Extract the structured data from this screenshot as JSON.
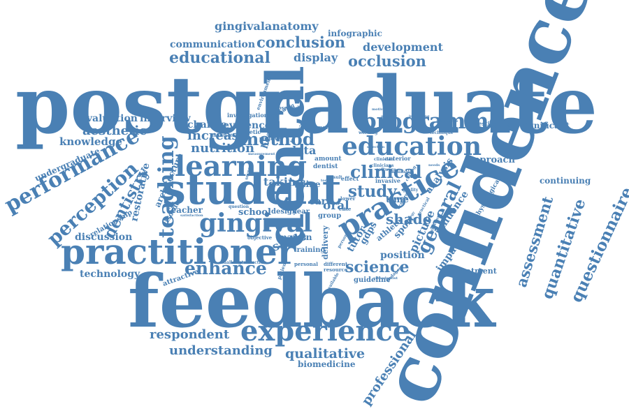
{
  "colors": {
    "word": "#4a80b4",
    "background": "#ffffff"
  },
  "words": [
    {
      "text": "postgraduate"
    },
    {
      "text": "confidence"
    },
    {
      "text": "feedback"
    },
    {
      "text": "dental"
    },
    {
      "text": "student"
    },
    {
      "text": "practitioner"
    },
    {
      "text": "practice"
    },
    {
      "text": "education"
    },
    {
      "text": "learning"
    },
    {
      "text": "experience"
    },
    {
      "text": "gingival"
    },
    {
      "text": "programme"
    },
    {
      "text": "teaching"
    },
    {
      "text": "performance"
    },
    {
      "text": "perception"
    },
    {
      "text": "dentistry"
    },
    {
      "text": "general"
    },
    {
      "text": "clinical"
    },
    {
      "text": "professional"
    },
    {
      "text": "questionnaire"
    },
    {
      "text": "quantitative"
    },
    {
      "text": "assessment"
    },
    {
      "text": "qualitative"
    },
    {
      "text": "enhance"
    },
    {
      "text": "method"
    },
    {
      "text": "study"
    },
    {
      "text": "science"
    },
    {
      "text": "respondent"
    },
    {
      "text": "understanding"
    },
    {
      "text": "educational"
    },
    {
      "text": "conclusion"
    },
    {
      "text": "occlusion"
    },
    {
      "text": "development"
    },
    {
      "text": "gingivalanatomy"
    },
    {
      "text": "communication"
    },
    {
      "text": "infographic"
    },
    {
      "text": "display"
    },
    {
      "text": "nutrition"
    },
    {
      "text": "increase"
    },
    {
      "text": "evidence"
    },
    {
      "text": "change"
    },
    {
      "text": "aesthetic"
    },
    {
      "text": "knowledge"
    },
    {
      "text": "evaluation"
    },
    {
      "text": "interview"
    },
    {
      "text": "undergraduate"
    },
    {
      "text": "restorative"
    },
    {
      "text": "relationship"
    },
    {
      "text": "architecture"
    },
    {
      "text": "discussion"
    },
    {
      "text": "technology"
    },
    {
      "text": "teacher"
    },
    {
      "text": "taking"
    },
    {
      "text": "school"
    },
    {
      "text": "design"
    },
    {
      "text": "year"
    },
    {
      "text": "data"
    },
    {
      "text": "oral"
    },
    {
      "text": "card"
    },
    {
      "text": "line"
    },
    {
      "text": "group"
    },
    {
      "text": "shade"
    },
    {
      "text": "smile"
    },
    {
      "text": "margin"
    },
    {
      "text": "gdps"
    },
    {
      "text": "tutor"
    },
    {
      "text": "picture"
    },
    {
      "text": "influence"
    },
    {
      "text": "impact"
    },
    {
      "text": "position"
    },
    {
      "text": "sport"
    },
    {
      "text": "analysis"
    },
    {
      "text": "approach"
    },
    {
      "text": "significant"
    },
    {
      "text": "continuing"
    },
    {
      "text": "treatment"
    },
    {
      "text": "biomedicine"
    },
    {
      "text": "health"
    },
    {
      "text": "attractive"
    },
    {
      "text": "guideline"
    },
    {
      "text": "delivery"
    },
    {
      "text": "training"
    },
    {
      "text": "time"
    },
    {
      "text": "athlete"
    },
    {
      "text": "amount"
    },
    {
      "text": "dentist"
    },
    {
      "text": "disorder"
    },
    {
      "text": "physiological"
    },
    {
      "text": "investigating"
    },
    {
      "text": "investigation"
    },
    {
      "text": "environment"
    },
    {
      "text": "athletic"
    },
    {
      "text": "positive"
    },
    {
      "text": "patient"
    },
    {
      "text": "personal"
    },
    {
      "text": "different"
    },
    {
      "text": "resource"
    },
    {
      "text": "invasive"
    },
    {
      "text": "anterior"
    },
    {
      "text": "objective"
    },
    {
      "text": "effect"
    },
    {
      "text": "lower"
    },
    {
      "text": "elite"
    },
    {
      "text": "material"
    },
    {
      "text": "variation"
    },
    {
      "text": "action"
    },
    {
      "text": "following"
    },
    {
      "text": "observed"
    },
    {
      "text": "information"
    },
    {
      "text": "question"
    },
    {
      "text": "several"
    },
    {
      "text": "satisfaction"
    },
    {
      "text": "challenge"
    },
    {
      "text": "introduction"
    },
    {
      "text": "software"
    },
    {
      "text": "orthodontist"
    },
    {
      "text": "pedagogy"
    },
    {
      "text": "person"
    },
    {
      "text": "available"
    },
    {
      "text": "clinician"
    },
    {
      "text": "clinicians"
    },
    {
      "text": "working"
    },
    {
      "text": "technique"
    },
    {
      "text": "motivation"
    },
    {
      "text": "increasing"
    },
    {
      "text": "acceptance"
    },
    {
      "text": "ongoing"
    },
    {
      "text": "cutting"
    },
    {
      "text": "minimal"
    },
    {
      "text": "result"
    },
    {
      "text": "facilitate"
    },
    {
      "text": "measurement"
    },
    {
      "text": "sample"
    },
    {
      "text": "acquired"
    },
    {
      "text": "practical"
    },
    {
      "text": "strategy"
    },
    {
      "text": "quality"
    },
    {
      "text": "needs"
    },
    {
      "text": "tooth"
    },
    {
      "text": "selection"
    }
  ]
}
